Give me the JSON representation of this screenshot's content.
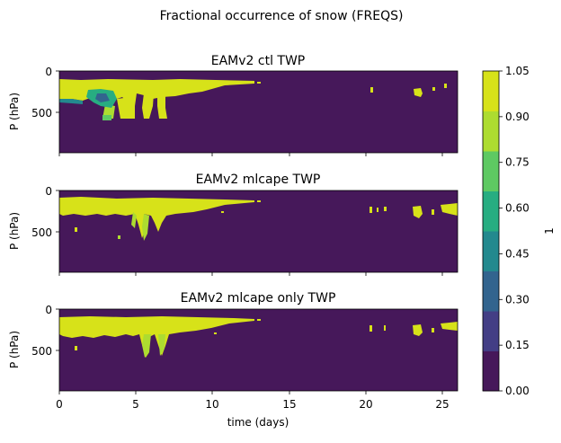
{
  "suptitle": "Fractional occurrence of snow (FREQS)",
  "colorbar": {
    "label": "1",
    "ticks": [
      "0.00",
      "0.15",
      "0.30",
      "0.45",
      "0.60",
      "0.75",
      "0.90",
      "1.05"
    ],
    "levels": [
      0,
      0.15,
      0.3,
      0.45,
      0.6,
      0.75,
      0.9,
      1.05
    ],
    "colors": [
      "#46185a",
      "#433e85",
      "#32648e",
      "#23898e",
      "#27ad81",
      "#5ec962",
      "#addc30",
      "#d7e219"
    ]
  },
  "chart_data": [
    {
      "type": "heatmap",
      "title": "EAMv2 ctl TWP",
      "ylabel": "P (hPa)",
      "xlabel": "",
      "x_ticks": [],
      "y_ticks": [
        "0",
        "500"
      ],
      "xlim": [
        0,
        26
      ],
      "ylim": [
        1000,
        0
      ],
      "regions": [
        {
          "value": 1.0,
          "x": [
            0,
            13
          ],
          "p_top": 100,
          "p_bottom": 600,
          "description": "high occurrence band 0-13 days, deep columns near days 2, 5, 6.5"
        },
        {
          "value": 0.5,
          "x": [
            3,
            5
          ],
          "p_top": 250,
          "p_bottom": 450
        },
        {
          "value": 1.0,
          "x": [
            20.3,
            20.5
          ],
          "p_top": 150,
          "p_bottom": 250
        },
        {
          "value": 1.0,
          "x": [
            23.2,
            23.9
          ],
          "p_top": 150,
          "p_bottom": 280
        },
        {
          "value": 1.0,
          "x": [
            25.1,
            25.3
          ],
          "p_top": 100,
          "p_bottom": 200
        }
      ]
    },
    {
      "type": "heatmap",
      "title": "EAMv2 mlcape TWP",
      "ylabel": "P (hPa)",
      "xlabel": "",
      "x_ticks": [],
      "y_ticks": [
        "0",
        "500"
      ],
      "xlim": [
        0,
        26
      ],
      "ylim": [
        1000,
        0
      ],
      "regions": [
        {
          "value": 1.0,
          "x": [
            0,
            13
          ],
          "p_top": 100,
          "p_bottom": 600
        },
        {
          "value": 1.0,
          "x": [
            20.3,
            21.5
          ],
          "p_top": 180,
          "p_bottom": 280
        },
        {
          "value": 1.0,
          "x": [
            23.2,
            23.8
          ],
          "p_top": 180,
          "p_bottom": 320
        },
        {
          "value": 1.0,
          "x": [
            24.6,
            26
          ],
          "p_top": 150,
          "p_bottom": 300
        }
      ]
    },
    {
      "type": "heatmap",
      "title": "EAMv2 mlcape only TWP",
      "ylabel": "P (hPa)",
      "xlabel": "time (days)",
      "x_ticks": [
        "0",
        "5",
        "10",
        "15",
        "20",
        "25"
      ],
      "y_ticks": [
        "0",
        "500"
      ],
      "xlim": [
        0,
        26
      ],
      "ylim": [
        1000,
        0
      ],
      "regions": [
        {
          "value": 1.0,
          "x": [
            0,
            13
          ],
          "p_top": 100,
          "p_bottom": 600
        },
        {
          "value": 1.0,
          "x": [
            20.3,
            21.5
          ],
          "p_top": 180,
          "p_bottom": 280
        },
        {
          "value": 1.0,
          "x": [
            23.2,
            23.8
          ],
          "p_top": 180,
          "p_bottom": 320
        },
        {
          "value": 1.0,
          "x": [
            24.6,
            26
          ],
          "p_top": 150,
          "p_bottom": 270
        }
      ]
    }
  ]
}
